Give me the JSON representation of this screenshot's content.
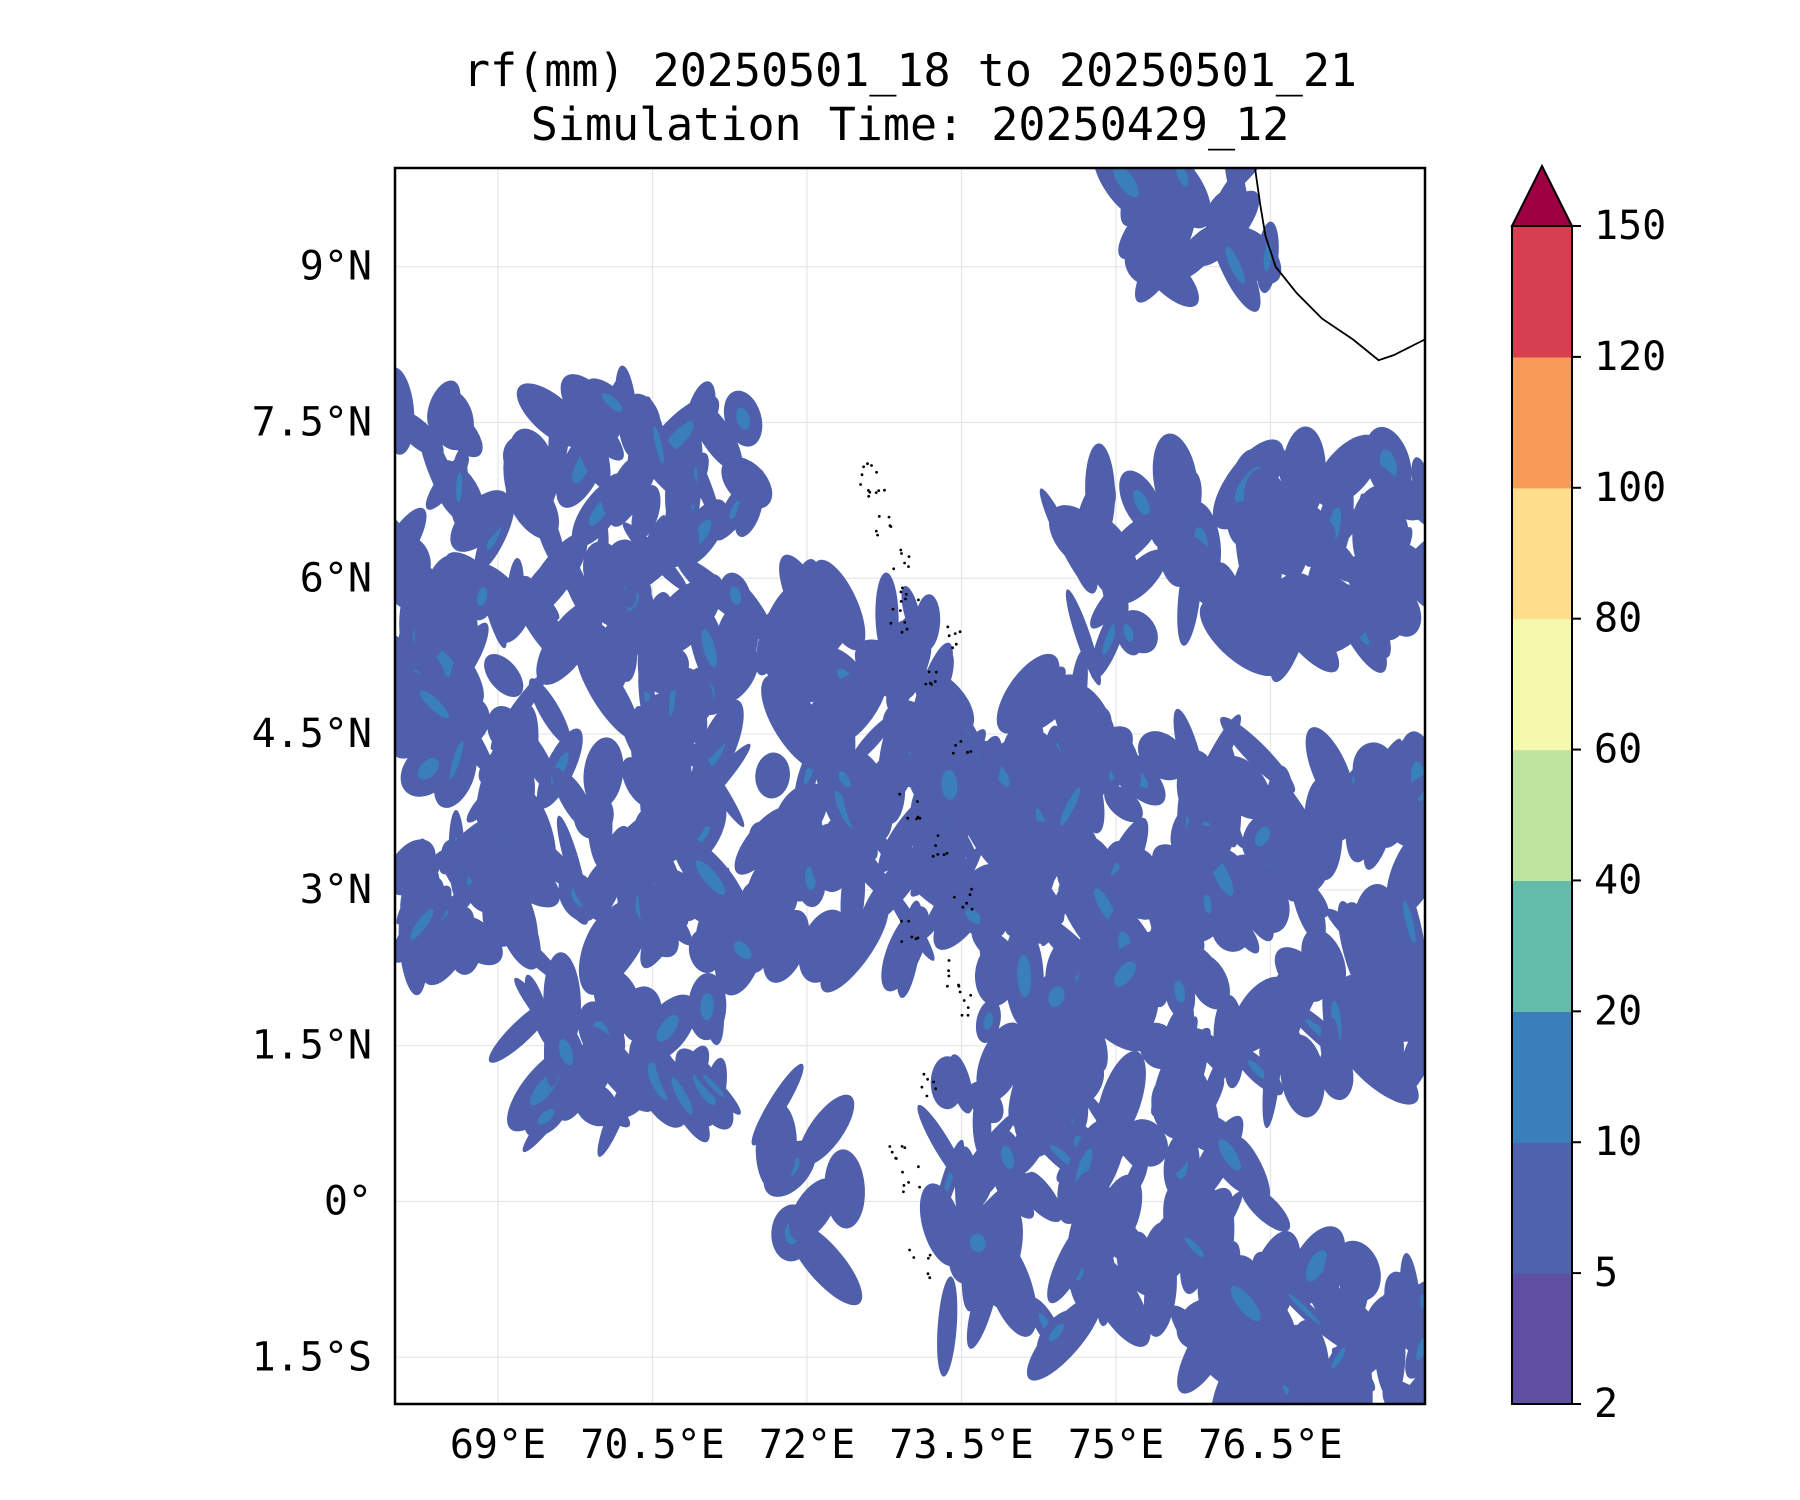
{
  "title": {
    "line1": "rf(mm) 20250501_18 to 20250501_21",
    "line2": "Simulation Time: 20250429_12"
  },
  "map": {
    "lon_range": [
      68.0,
      78.0
    ],
    "lat_range": [
      -1.95,
      9.95
    ],
    "lon_ticks": [
      69,
      70.5,
      72,
      73.5,
      75,
      76.5
    ],
    "lon_tick_labels": [
      "69°E",
      "70.5°E",
      "72°E",
      "73.5°E",
      "75°E",
      "76.5°E"
    ],
    "lat_ticks": [
      9,
      7.5,
      6,
      4.5,
      3,
      1.5,
      0,
      -1.5
    ],
    "lat_tick_labels": [
      "9°N",
      "7.5°N",
      "6°N",
      "4.5°N",
      "3°N",
      "1.5°N",
      "0°",
      "1.5°S"
    ],
    "gridlines": true,
    "coastline_color": "#000000",
    "rain_field_color": "#4f5fab"
  },
  "colorbar": {
    "levels": [
      2,
      5,
      10,
      20,
      40,
      60,
      80,
      100,
      120,
      150
    ],
    "tick_labels": [
      "2",
      "5",
      "10",
      "20",
      "40",
      "60",
      "80",
      "100",
      "120",
      "150"
    ],
    "colors": [
      "#5e4fa2",
      "#4f63ad",
      "#3a7fbb",
      "#63bca9",
      "#bfe4a0",
      "#f4f9ae",
      "#fddf8b",
      "#f89b59",
      "#d63f50"
    ],
    "extend_color": "#9e0142",
    "extend": "max"
  }
}
